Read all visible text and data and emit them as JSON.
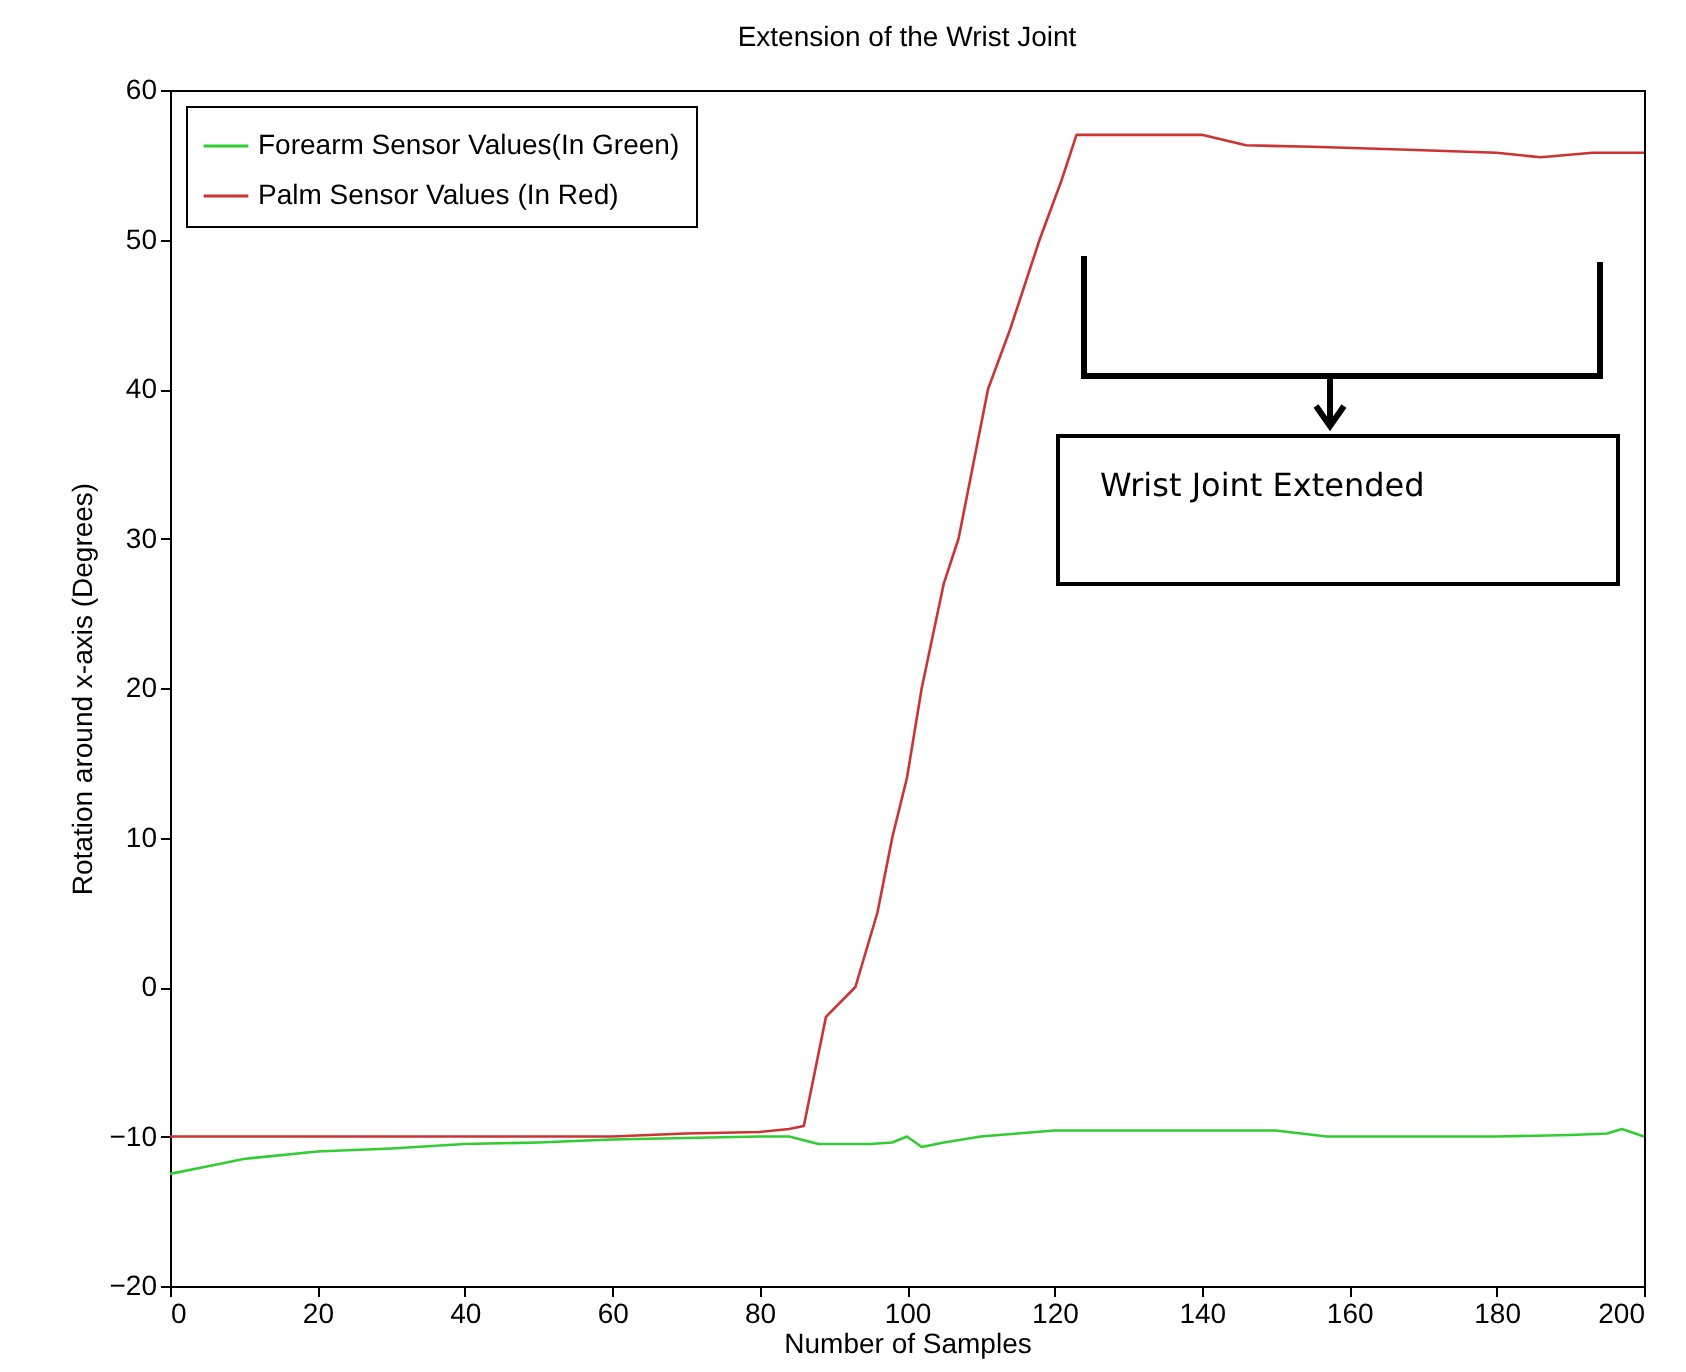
{
  "chart_data": {
    "type": "line",
    "title": "Extension of the Wrist Joint",
    "xlabel": "Number of Samples",
    "ylabel": "Rotation around x-axis (Degrees)",
    "xlim": [
      0,
      200
    ],
    "xticks": [
      0,
      20,
      40,
      60,
      80,
      100,
      120,
      140,
      160,
      180,
      200
    ],
    "ylim": [
      -20,
      60
    ],
    "yticks": [
      -20,
      -10,
      0,
      10,
      20,
      30,
      40,
      50,
      60
    ],
    "legend": "top left",
    "grid": false,
    "annotations": [
      "Wrist Joint Extended"
    ],
    "series": [
      {
        "name": "Forearm Sensor Values(In Green)",
        "color": "#33cc33",
        "x": [
          0,
          5,
          10,
          20,
          30,
          40,
          50,
          60,
          70,
          80,
          84,
          88,
          95,
          98,
          100,
          102,
          105,
          110,
          115,
          120,
          130,
          140,
          150,
          157,
          170,
          180,
          190,
          195,
          197,
          200
        ],
        "values": [
          -12.5,
          -12,
          -11.5,
          -11,
          -10.8,
          -10.5,
          -10.4,
          -10.2,
          -10.1,
          -10,
          -10,
          -10.5,
          -10.5,
          -10.4,
          -10,
          -10.7,
          -10.4,
          -10,
          -9.8,
          -9.6,
          -9.6,
          -9.6,
          -9.6,
          -10,
          -10,
          -10,
          -9.9,
          -9.8,
          -9.5,
          -10
        ]
      },
      {
        "name": "Palm Sensor Values (In Red)",
        "color": "#cc3333",
        "x": [
          0,
          20,
          40,
          60,
          70,
          80,
          84,
          86,
          89,
          93,
          96,
          98,
          100,
          102,
          105,
          107,
          109,
          111,
          114,
          118,
          121,
          123,
          130,
          140,
          146,
          155,
          168,
          180,
          186,
          193,
          200
        ],
        "values": [
          -10,
          -10,
          -10,
          -10,
          -9.8,
          -9.7,
          -9.5,
          -9.3,
          -2,
          0,
          5,
          10,
          14,
          20,
          27,
          30,
          35,
          40,
          44,
          50,
          54,
          57,
          57,
          57,
          56.3,
          56.2,
          56,
          55.8,
          55.5,
          55.8,
          55.8
        ]
      }
    ]
  }
}
